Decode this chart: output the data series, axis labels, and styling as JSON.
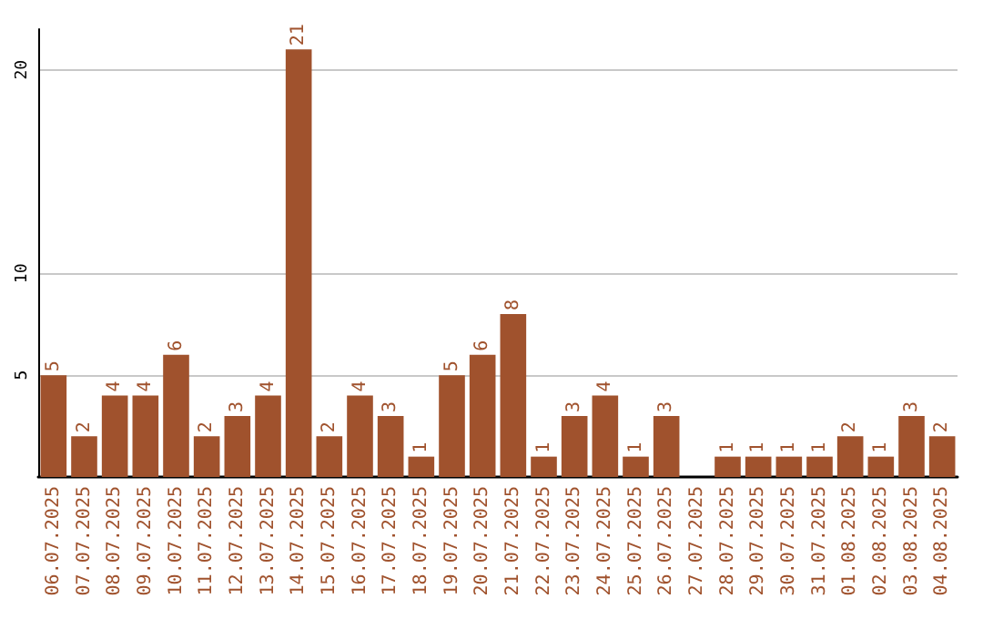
{
  "chart_data": {
    "type": "bar",
    "categories": [
      "06.07.2025",
      "07.07.2025",
      "08.07.2025",
      "09.07.2025",
      "10.07.2025",
      "11.07.2025",
      "12.07.2025",
      "13.07.2025",
      "14.07.2025",
      "15.07.2025",
      "16.07.2025",
      "17.07.2025",
      "18.07.2025",
      "19.07.2025",
      "20.07.2025",
      "21.07.2025",
      "22.07.2025",
      "23.07.2025",
      "24.07.2025",
      "25.07.2025",
      "26.07.2025",
      "27.07.2025",
      "28.07.2025",
      "29.07.2025",
      "30.07.2025",
      "31.07.2025",
      "01.08.2025",
      "02.08.2025",
      "03.08.2025",
      "04.08.2025"
    ],
    "values": [
      5,
      2,
      4,
      4,
      6,
      2,
      3,
      4,
      21,
      2,
      4,
      3,
      1,
      5,
      6,
      8,
      1,
      3,
      4,
      1,
      3,
      null,
      1,
      1,
      1,
      1,
      2,
      1,
      3,
      2
    ],
    "color": "#a0522d",
    "ylim": [
      0,
      22
    ],
    "yticks": [
      5,
      10,
      20
    ],
    "grid": "y",
    "data_labels": true
  }
}
